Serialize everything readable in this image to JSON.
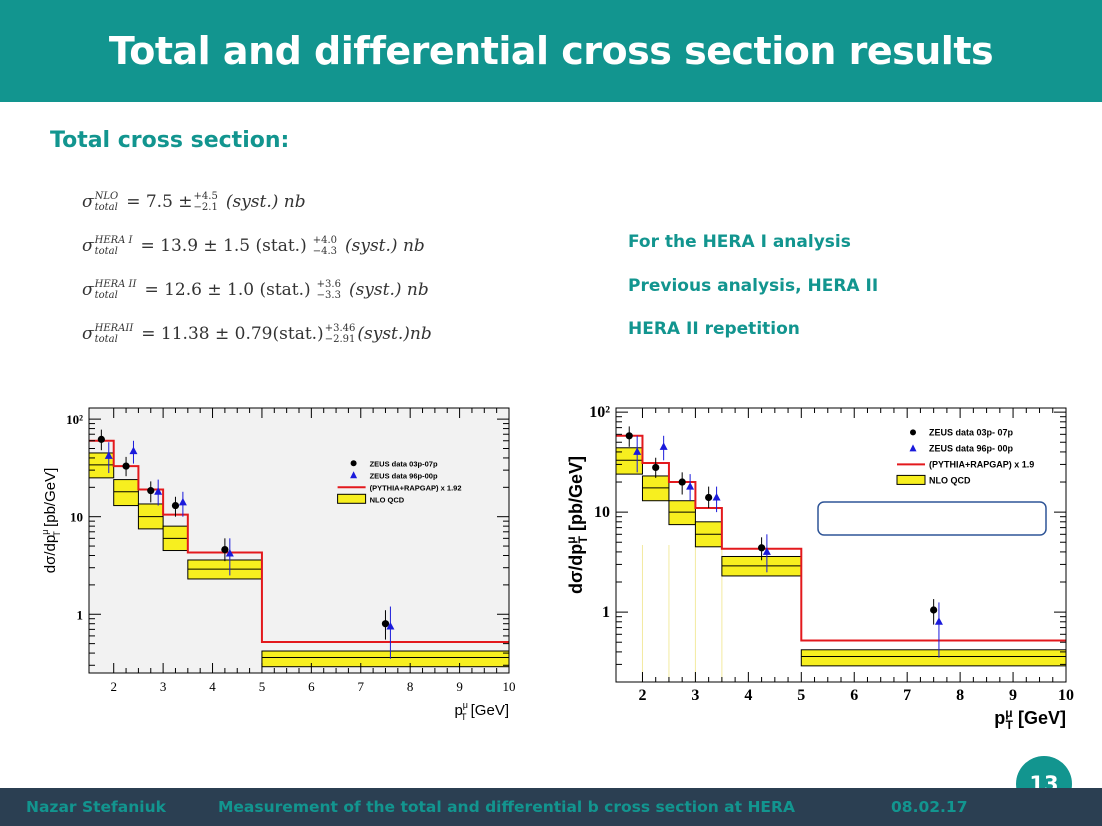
{
  "slide": {
    "title": "Total and differential cross section results",
    "subheading": "Total cross section:",
    "formulas": [
      {
        "label_sup": "NLO",
        "label_sub": "total",
        "value": "= 7.5 ±",
        "err_up": "+4.5",
        "err_down": "−2.1",
        "tail": "(syst.) nb"
      },
      {
        "label_sup": "HERA I",
        "label_sub": "total",
        "value": "= 13.9 ± 1.5 (stat.)",
        "err_up": "+4.0",
        "err_down": "−4.3",
        "tail": "(syst.) nb"
      },
      {
        "label_sup": "HERA II",
        "label_sub": "total",
        "value": "= 12.6 ± 1.0 (stat.)",
        "err_up": "+3.6",
        "err_down": "−3.3",
        "tail": "(syst.) nb"
      },
      {
        "label_sup": "HERAII",
        "label_sub": "total",
        "value": "= 11.38 ± 0.79(stat.)",
        "err_up": "+3.46",
        "err_down": "−2.91",
        "tail": "(syst.)nb"
      }
    ],
    "notes": [
      "For the HERA I analysis",
      "Previous analysis, HERA II",
      "HERA II repetition"
    ],
    "footer": {
      "author": "Nazar  Stefaniuk",
      "talk": "Measurement of the total and differential b cross section at HERA",
      "date": "08.02.17"
    },
    "page_number": "13"
  },
  "chart_data": [
    {
      "type": "line",
      "ylabel": "dσ/dp",
      "ylabel_sup": "μ",
      "ylabel_sub": "T",
      "ylabel_unit": " [pb/GeV]",
      "xlabel": "p",
      "xlabel_sup": "μ",
      "xlabel_sub": "T",
      "xlabel_unit": " [GeV]",
      "xlim": [
        1.5,
        10
      ],
      "ylim": [
        0.25,
        130
      ],
      "log_y": true,
      "x_ticks": [
        "2",
        "3",
        "4",
        "5",
        "6",
        "7",
        "8",
        "9",
        "10"
      ],
      "y_ticks": [
        {
          "v": 1,
          "label": "1"
        },
        {
          "v": 10,
          "label": "10"
        },
        {
          "v": 100,
          "label": "10²"
        }
      ],
      "legend": [
        "ZEUS data 03p-07p",
        "ZEUS data 96p-00p",
        "(PYTHIA+RAPGAP) x 1.92",
        "NLO QCD"
      ],
      "legend_position": "top-right",
      "bins": [
        1.5,
        2.0,
        2.5,
        3.0,
        3.5,
        5.0,
        10.0
      ],
      "mc_values": [
        60,
        33,
        19,
        10.5,
        4.3,
        0.52
      ],
      "nlo_band": [
        [
          25,
          45
        ],
        [
          13,
          24
        ],
        [
          7.5,
          13.5
        ],
        [
          4.5,
          8
        ],
        [
          2.3,
          3.6
        ],
        [
          0.29,
          0.42
        ]
      ],
      "nlo_central": [
        34,
        18,
        10,
        6,
        2.9,
        0.36
      ],
      "data_03p07p": [
        {
          "x": 1.75,
          "y": 62,
          "lo": 48,
          "hi": 78
        },
        {
          "x": 2.25,
          "y": 33,
          "lo": 26,
          "hi": 41
        },
        {
          "x": 2.75,
          "y": 18.5,
          "lo": 14,
          "hi": 23
        },
        {
          "x": 3.25,
          "y": 13,
          "lo": 10,
          "hi": 16
        },
        {
          "x": 4.25,
          "y": 4.6,
          "lo": 3.5,
          "hi": 6
        },
        {
          "x": 7.5,
          "y": 0.8,
          "lo": 0.55,
          "hi": 1.1
        }
      ],
      "data_96p00p": [
        {
          "x": 1.9,
          "y": 42,
          "lo": 28,
          "hi": 58
        },
        {
          "x": 2.4,
          "y": 47,
          "lo": 35,
          "hi": 60
        },
        {
          "x": 2.9,
          "y": 18,
          "lo": 13,
          "hi": 24
        },
        {
          "x": 3.4,
          "y": 14,
          "lo": 10,
          "hi": 18
        },
        {
          "x": 4.35,
          "y": 4.2,
          "lo": 2.5,
          "hi": 6
        },
        {
          "x": 7.6,
          "y": 0.75,
          "lo": 0.35,
          "hi": 1.2
        }
      ]
    },
    {
      "type": "line",
      "ylabel": "dσ/dp",
      "ylabel_sup": "μ",
      "ylabel_sub": "T",
      "ylabel_unit": " [pb/GeV]",
      "xlabel": "p",
      "xlabel_sup": "μ",
      "xlabel_sub": "T",
      "xlabel_unit": " [GeV]",
      "xlim": [
        1.5,
        10
      ],
      "ylim": [
        0.2,
        110
      ],
      "log_y": true,
      "x_ticks": [
        "2",
        "3",
        "4",
        "5",
        "6",
        "7",
        "8",
        "9",
        "10"
      ],
      "y_ticks": [
        {
          "v": 1,
          "label": "1"
        },
        {
          "v": 10,
          "label": "10"
        },
        {
          "v": 100,
          "label": "10²"
        }
      ],
      "legend": [
        "ZEUS data 03p- 07p",
        "ZEUS data 96p- 00p",
        "(PYTHIA+RAPGAP) x 1.9",
        "NLO QCD"
      ],
      "legend_position": "top-right",
      "bins": [
        1.5,
        2.0,
        2.5,
        3.0,
        3.5,
        5.0,
        10.0
      ],
      "mc_values": [
        58,
        31,
        20,
        11,
        4.3,
        0.52
      ],
      "nlo_band": [
        [
          24,
          44
        ],
        [
          13,
          23
        ],
        [
          7.5,
          13
        ],
        [
          4.5,
          8
        ],
        [
          2.3,
          3.6
        ],
        [
          0.29,
          0.42
        ]
      ],
      "nlo_central": [
        33,
        17.5,
        10,
        6,
        2.9,
        0.36
      ],
      "data_03p07p": [
        {
          "x": 1.75,
          "y": 58,
          "lo": 45,
          "hi": 72
        },
        {
          "x": 2.25,
          "y": 28,
          "lo": 22,
          "hi": 35
        },
        {
          "x": 2.75,
          "y": 20,
          "lo": 15,
          "hi": 25
        },
        {
          "x": 3.25,
          "y": 14,
          "lo": 11,
          "hi": 18
        },
        {
          "x": 4.25,
          "y": 4.4,
          "lo": 3.3,
          "hi": 5.6
        },
        {
          "x": 7.5,
          "y": 1.05,
          "lo": 0.75,
          "hi": 1.35
        }
      ],
      "data_96p00p": [
        {
          "x": 1.9,
          "y": 40,
          "lo": 25,
          "hi": 58
        },
        {
          "x": 2.4,
          "y": 45,
          "lo": 33,
          "hi": 58
        },
        {
          "x": 2.9,
          "y": 18,
          "lo": 13,
          "hi": 24
        },
        {
          "x": 3.4,
          "y": 14,
          "lo": 10,
          "hi": 18
        },
        {
          "x": 4.35,
          "y": 4.0,
          "lo": 2.5,
          "hi": 6
        },
        {
          "x": 7.6,
          "y": 0.8,
          "lo": 0.35,
          "hi": 1.25
        }
      ]
    }
  ]
}
